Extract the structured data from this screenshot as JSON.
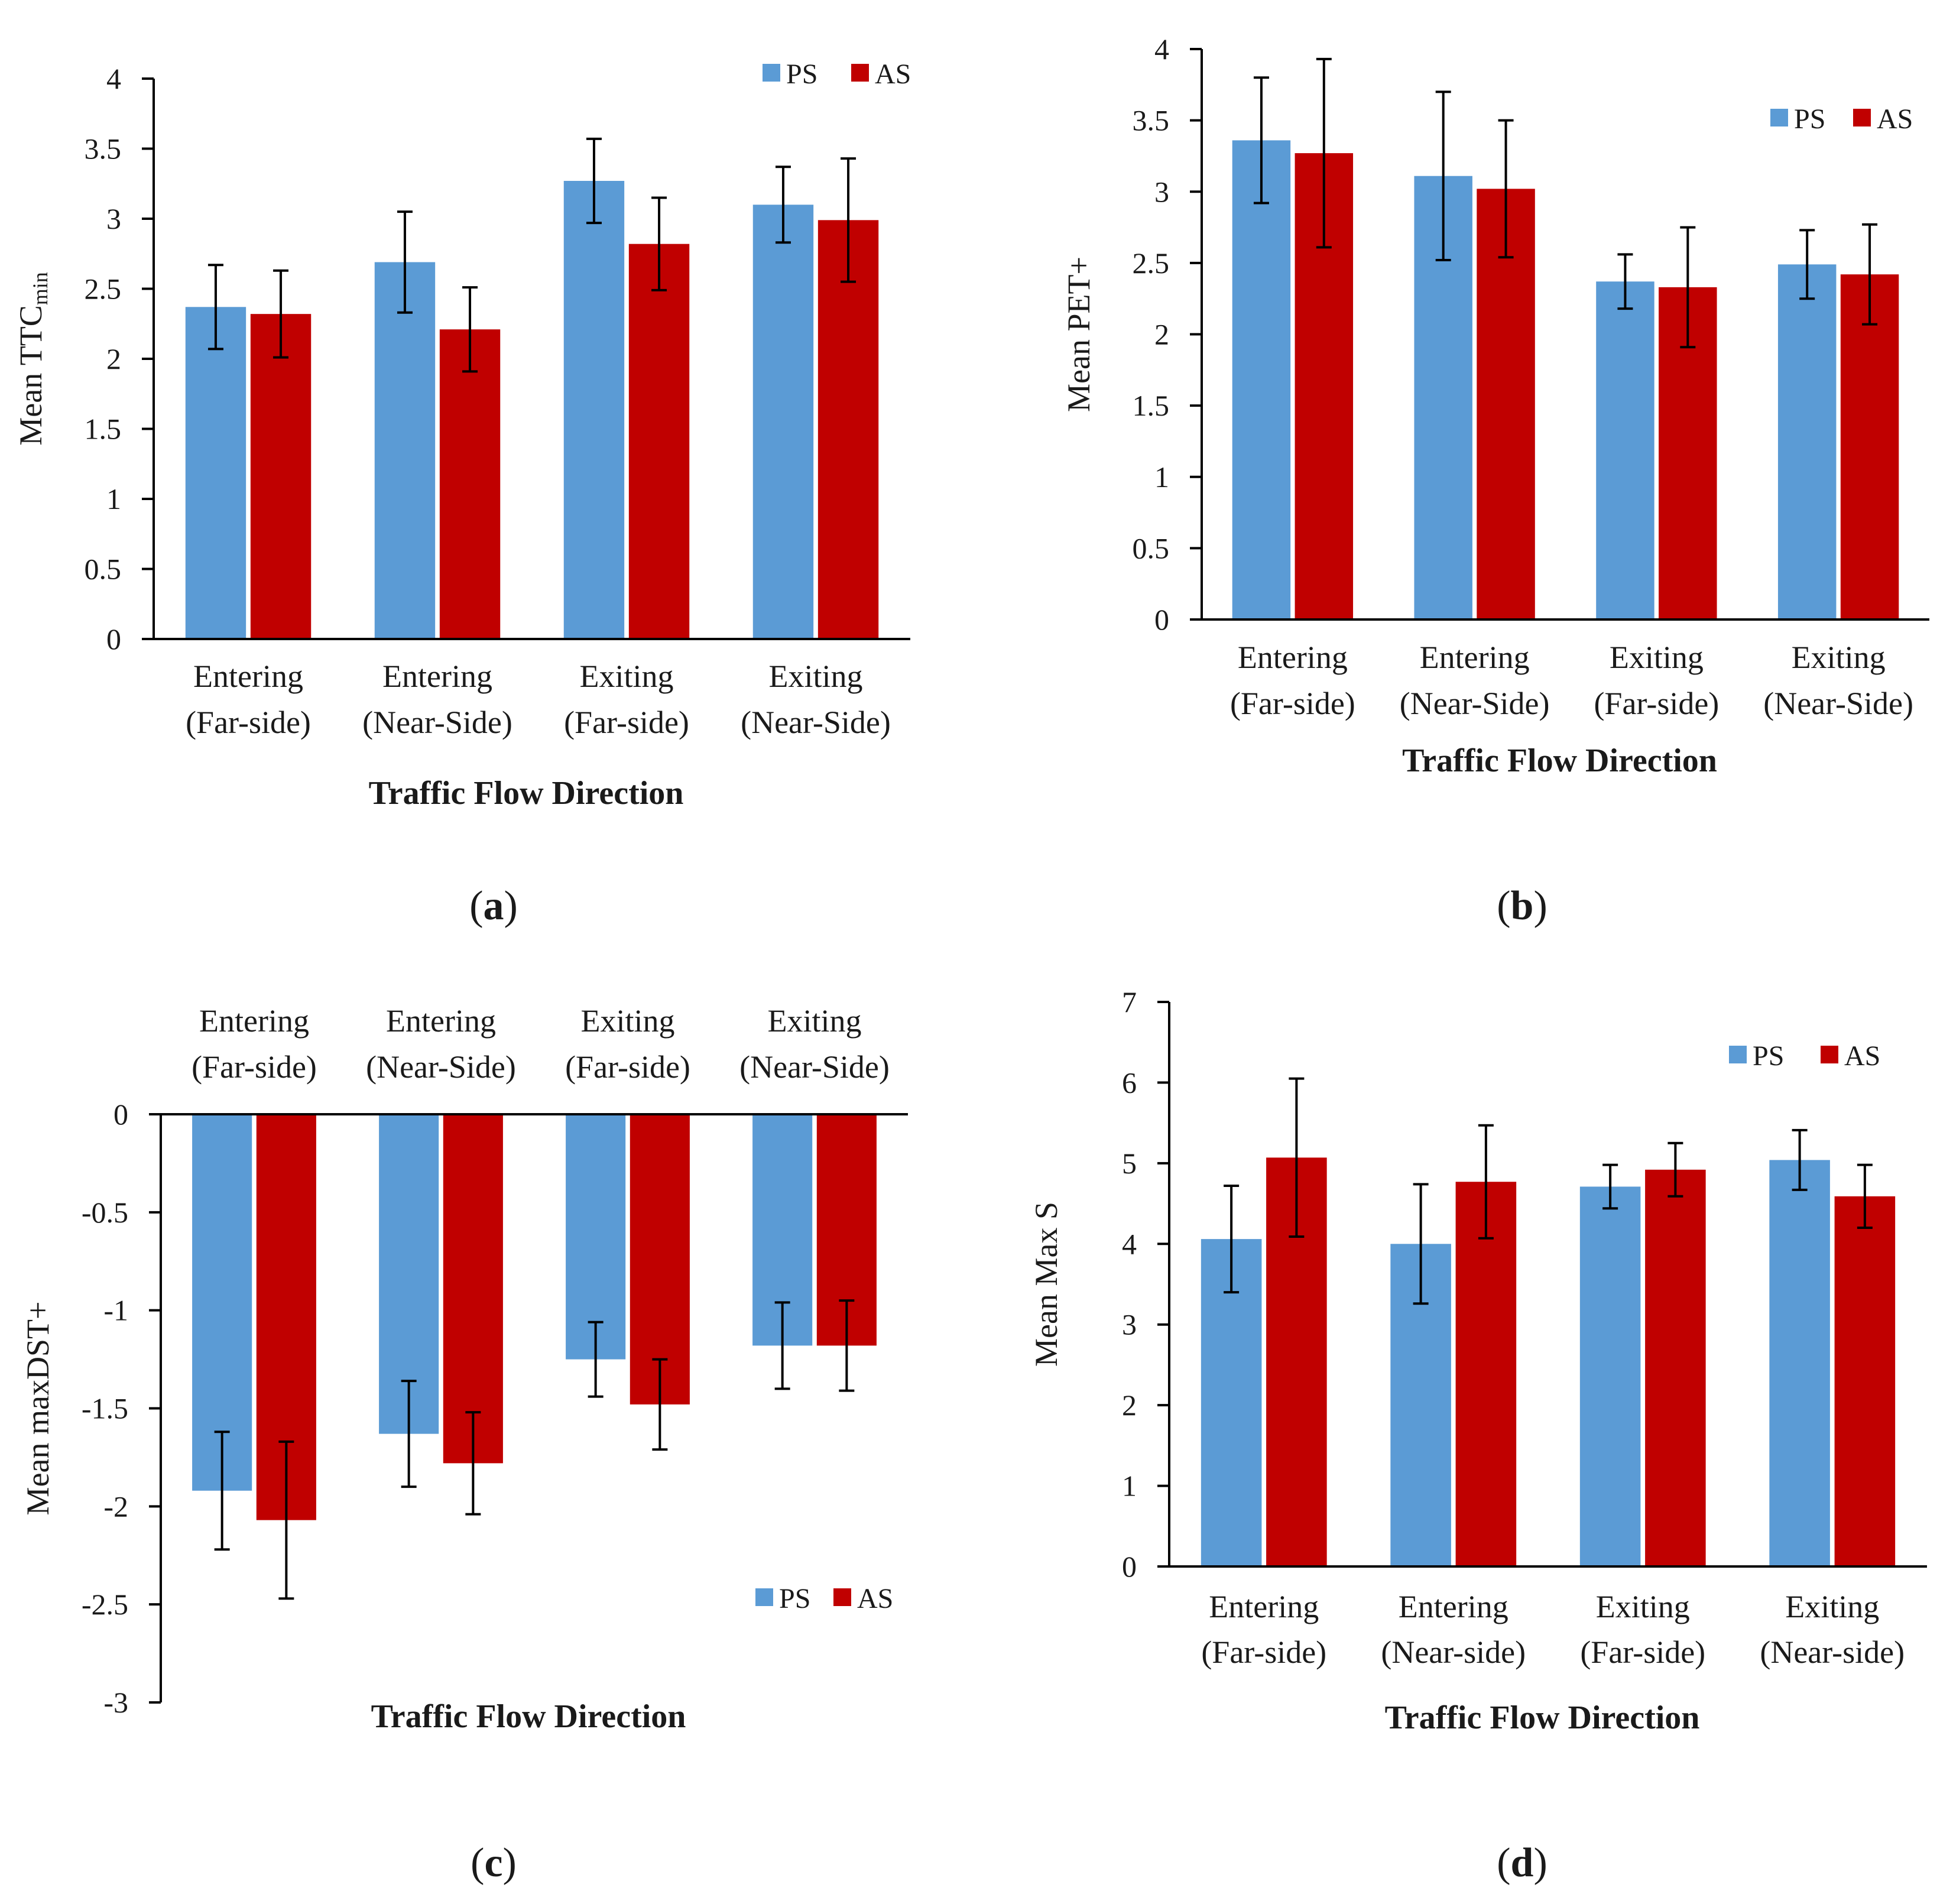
{
  "colors": {
    "PS": "#5b9bd5",
    "AS": "#c00000",
    "axis": "#000000",
    "error": "#000000"
  },
  "chart_data": [
    {
      "type": "bar",
      "panel": "a",
      "panel_label": "a",
      "ylabel": "Mean TTC",
      "ylabel_sub": "min",
      "xlabel": "Traffic Flow Direction",
      "categories": [
        [
          "Entering",
          "(Far-side)"
        ],
        [
          "Entering",
          "(Near-Side)"
        ],
        [
          "Exiting",
          "(Far-side)"
        ],
        [
          "Exiting",
          "(Near-Side)"
        ]
      ],
      "series": [
        {
          "name": "PS",
          "values": [
            2.37,
            2.69,
            3.27,
            3.1
          ],
          "err": [
            0.3,
            0.36,
            0.3,
            0.27
          ]
        },
        {
          "name": "AS",
          "values": [
            2.32,
            2.21,
            2.82,
            2.99
          ],
          "err": [
            0.31,
            0.3,
            0.33,
            0.44
          ]
        }
      ],
      "ylim": [
        0,
        4
      ],
      "yticks": [
        0,
        0.5,
        1,
        1.5,
        2,
        2.5,
        3,
        3.5,
        4
      ],
      "ytick_labels": [
        "0",
        "0.5",
        "1",
        "1.5",
        "2",
        "2.5",
        "3",
        "3.5",
        "4"
      ],
      "legend": "top-right",
      "category_axis": "bottom"
    },
    {
      "type": "bar",
      "panel": "b",
      "panel_label": "b",
      "ylabel": "Mean PET+",
      "ylabel_sub": "",
      "xlabel": "Traffic Flow Direction",
      "categories": [
        [
          "Entering",
          "(Far-side)"
        ],
        [
          "Entering",
          "(Near-Side)"
        ],
        [
          "Exiting",
          "(Far-side)"
        ],
        [
          "Exiting",
          "(Near-Side)"
        ]
      ],
      "series": [
        {
          "name": "PS",
          "values": [
            3.36,
            3.11,
            2.37,
            2.49
          ],
          "err": [
            0.44,
            0.59,
            0.19,
            0.24
          ]
        },
        {
          "name": "AS",
          "values": [
            3.27,
            3.02,
            2.33,
            2.42
          ],
          "err": [
            0.66,
            0.48,
            0.42,
            0.35
          ]
        }
      ],
      "ylim": [
        0,
        4
      ],
      "yticks": [
        0,
        0.5,
        1,
        1.5,
        2,
        2.5,
        3,
        3.5,
        4
      ],
      "ytick_labels": [
        "0",
        "0.5",
        "1",
        "1.5",
        "2",
        "2.5",
        "3",
        "3.5",
        "4"
      ],
      "legend": "top-right",
      "category_axis": "bottom"
    },
    {
      "type": "bar",
      "panel": "c",
      "panel_label": "c",
      "ylabel": "Mean maxDST+",
      "ylabel_sub": "",
      "xlabel": "Traffic Flow Direction",
      "categories": [
        [
          "Entering",
          "(Far-side)"
        ],
        [
          "Entering",
          "(Near-Side)"
        ],
        [
          "Exiting",
          "(Far-side)"
        ],
        [
          "Exiting",
          "(Near-Side)"
        ]
      ],
      "series": [
        {
          "name": "PS",
          "values": [
            -1.92,
            -1.63,
            -1.25,
            -1.18
          ],
          "err": [
            0.3,
            0.27,
            0.19,
            0.22
          ]
        },
        {
          "name": "AS",
          "values": [
            -2.07,
            -1.78,
            -1.48,
            -1.18
          ],
          "err": [
            0.4,
            0.26,
            0.23,
            0.23
          ]
        }
      ],
      "ylim": [
        -3,
        0
      ],
      "yticks": [
        0,
        -0.5,
        -1,
        -1.5,
        -2,
        -2.5,
        -3
      ],
      "ytick_labels": [
        "0",
        "-0.5",
        "-1",
        "-1.5",
        "-2",
        "-2.5",
        "-3"
      ],
      "legend": "bottom-right",
      "category_axis": "top"
    },
    {
      "type": "bar",
      "panel": "d",
      "panel_label": "d",
      "ylabel": "Mean Max S",
      "ylabel_sub": "",
      "xlabel": "Traffic Flow Direction",
      "categories": [
        [
          "Entering",
          "(Far-side)"
        ],
        [
          "Entering",
          "(Near-side)"
        ],
        [
          "Exiting",
          "(Far-side)"
        ],
        [
          "Exiting",
          "(Near-side)"
        ]
      ],
      "series": [
        {
          "name": "PS",
          "values": [
            4.06,
            4.0,
            4.71,
            5.04
          ],
          "err": [
            0.66,
            0.74,
            0.27,
            0.37
          ]
        },
        {
          "name": "AS",
          "values": [
            5.07,
            4.77,
            4.92,
            4.59
          ],
          "err": [
            0.98,
            0.7,
            0.33,
            0.39
          ]
        }
      ],
      "ylim": [
        0,
        7
      ],
      "yticks": [
        0,
        1,
        2,
        3,
        4,
        5,
        6,
        7
      ],
      "ytick_labels": [
        "0",
        "1",
        "2",
        "3",
        "4",
        "5",
        "6",
        "7"
      ],
      "legend": "top-right",
      "category_axis": "bottom"
    }
  ]
}
